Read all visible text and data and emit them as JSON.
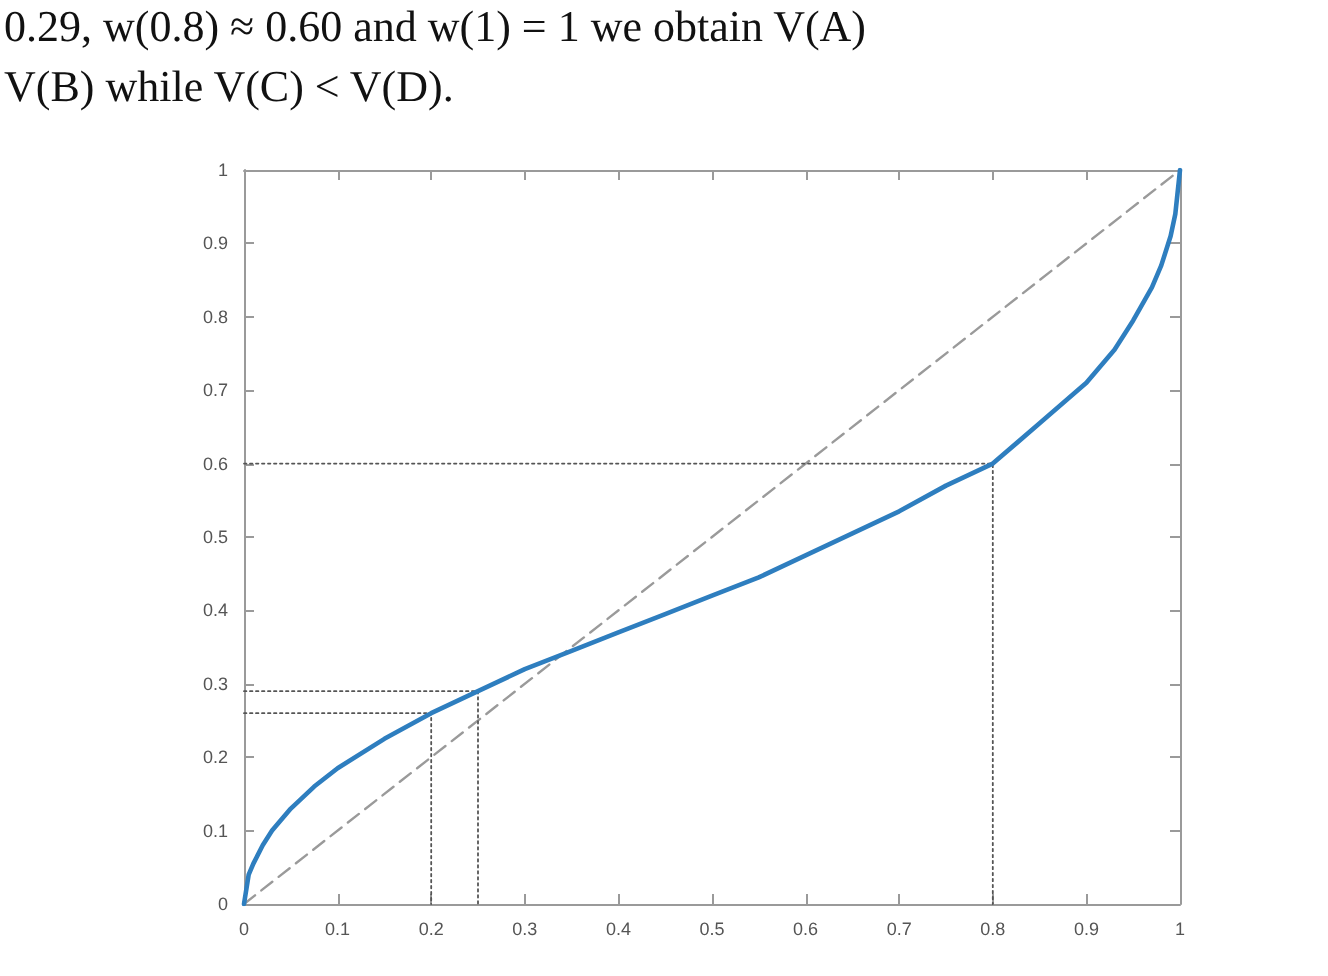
{
  "chart_data": {
    "type": "line",
    "annotations": [
      "0.29, w(0.8) ≈ 0.60 and w(1) = 1 we obtain V(A)",
      "V(B) while V(C) < V(D)."
    ],
    "xlim": [
      0,
      1
    ],
    "ylim": [
      0,
      1
    ],
    "xticks": [
      0,
      0.1,
      0.2,
      0.3,
      0.4,
      0.5,
      0.6,
      0.7,
      0.8,
      0.9,
      1
    ],
    "yticks": [
      0,
      0.1,
      0.2,
      0.3,
      0.4,
      0.5,
      0.6,
      0.7,
      0.8,
      0.9,
      1
    ],
    "marker": "none",
    "series": [
      {
        "color": "#2e7ebf",
        "line_style": "solid",
        "x": [
          0,
          0.005,
          0.01,
          0.02,
          0.03,
          0.05,
          0.075,
          0.1,
          0.15,
          0.2,
          0.25,
          0.3,
          0.35,
          0.4,
          0.45,
          0.5,
          0.55,
          0.6,
          0.65,
          0.7,
          0.75,
          0.8,
          0.85,
          0.9,
          0.93,
          0.95,
          0.97,
          0.98,
          0.99,
          0.995,
          1
        ],
        "values": [
          0,
          0.04,
          0.055,
          0.08,
          0.1,
          0.13,
          0.16,
          0.185,
          0.225,
          0.26,
          0.29,
          0.32,
          0.345,
          0.37,
          0.395,
          0.42,
          0.445,
          0.475,
          0.505,
          0.535,
          0.57,
          0.6,
          0.655,
          0.71,
          0.755,
          0.795,
          0.84,
          0.87,
          0.91,
          0.94,
          1
        ]
      },
      {
        "color": "#9a9a9a",
        "line_style": "dashed",
        "x": [
          0,
          1
        ],
        "values": [
          0,
          1
        ]
      },
      {
        "color": "#555555",
        "line_style": "dotted",
        "x": [
          0,
          0.2,
          0.2
        ],
        "values": [
          0.26,
          0.26,
          0
        ]
      },
      {
        "color": "#555555",
        "line_style": "dotted",
        "x": [
          0,
          0.25,
          0.25
        ],
        "values": [
          0.29,
          0.29,
          0
        ]
      },
      {
        "color": "#555555",
        "line_style": "dotted",
        "x": [
          0,
          0.8,
          0.8
        ],
        "values": [
          0.6,
          0.6,
          0
        ]
      }
    ]
  }
}
